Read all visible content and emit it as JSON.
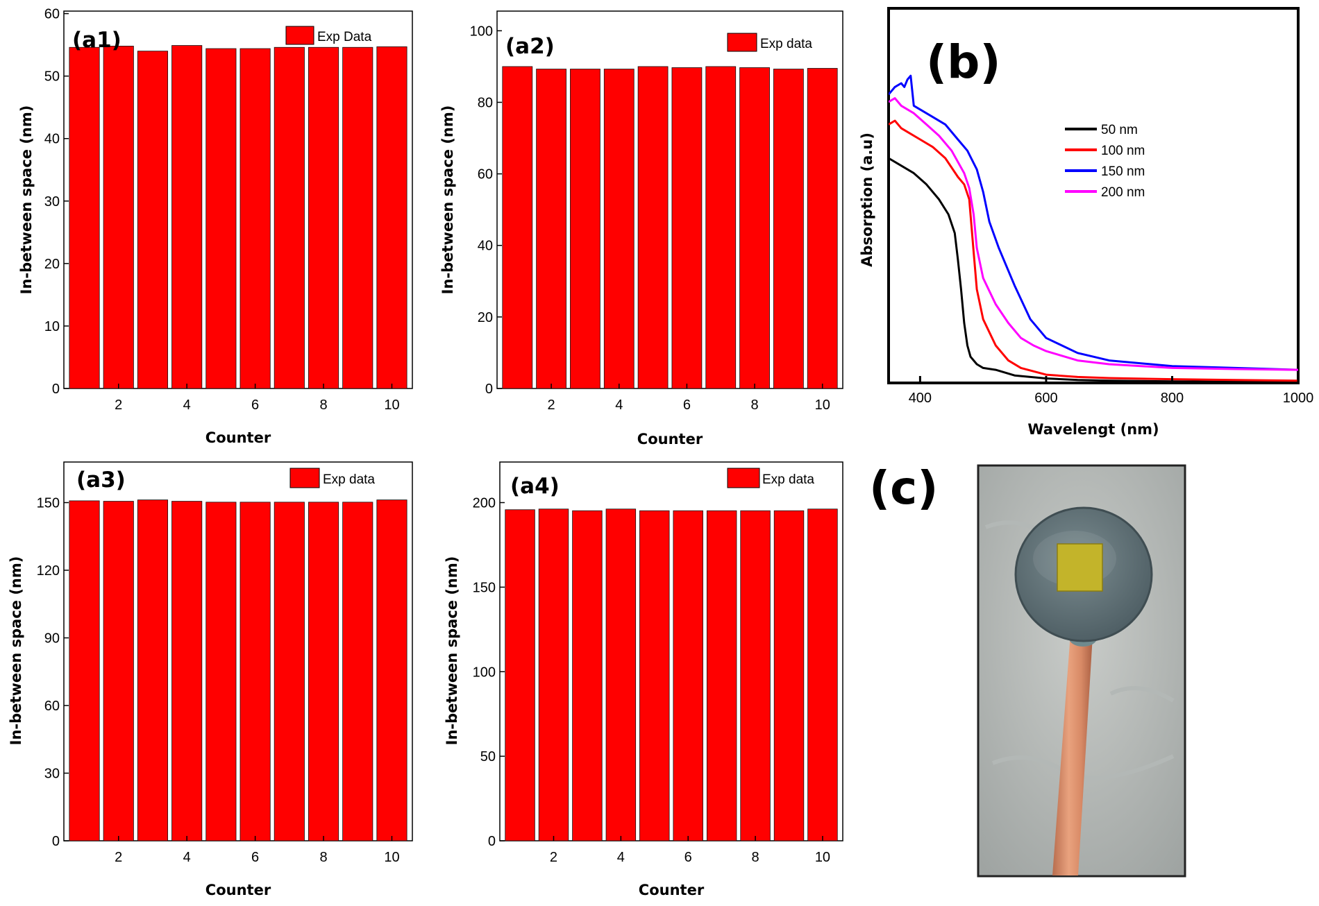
{
  "chart_data": [
    {
      "id": "a1",
      "type": "bar",
      "panel_label": "(a1)",
      "legend": "Exp Data",
      "xlabel": "Counter",
      "ylabel": "In-between space (nm)",
      "categories": [
        1,
        2,
        3,
        4,
        5,
        6,
        7,
        8,
        9,
        10
      ],
      "values": [
        54.6,
        54.8,
        54.0,
        54.9,
        54.4,
        54.4,
        54.6,
        54.6,
        54.6,
        54.7
      ],
      "xticks": [
        2,
        4,
        6,
        8,
        10
      ],
      "yticks": [
        0,
        10,
        20,
        30,
        40,
        50,
        60
      ],
      "xlim": [
        0.4,
        10.6
      ],
      "ylim": [
        0,
        60.4
      ],
      "color": "#ff0000"
    },
    {
      "id": "a2",
      "type": "bar",
      "panel_label": "(a2)",
      "legend": "Exp data",
      "xlabel": "Counter",
      "ylabel": "In-between space (nm)",
      "categories": [
        1,
        2,
        3,
        4,
        5,
        6,
        7,
        8,
        9,
        10
      ],
      "values": [
        90.0,
        89.3,
        89.3,
        89.3,
        90.0,
        89.7,
        90.0,
        89.7,
        89.3,
        89.5
      ],
      "xticks": [
        2,
        4,
        6,
        8,
        10
      ],
      "yticks": [
        0,
        20,
        40,
        60,
        80,
        100
      ],
      "xlim": [
        0.4,
        10.6
      ],
      "ylim": [
        0,
        105.5
      ],
      "color": "#ff0000"
    },
    {
      "id": "a3",
      "type": "bar",
      "panel_label": "(a3)",
      "legend": "Exp data",
      "xlabel": "Counter",
      "ylabel": "In-between space (nm)",
      "categories": [
        1,
        2,
        3,
        4,
        5,
        6,
        7,
        8,
        9,
        10
      ],
      "values": [
        150.8,
        150.6,
        151.2,
        150.6,
        150.2,
        150.2,
        150.2,
        150.2,
        150.2,
        151.2
      ],
      "xticks": [
        2,
        4,
        6,
        8,
        10
      ],
      "yticks": [
        0,
        30,
        60,
        90,
        120,
        150
      ],
      "xlim": [
        0.4,
        10.6
      ],
      "ylim": [
        0,
        168
      ],
      "color": "#ff0000"
    },
    {
      "id": "a4",
      "type": "bar",
      "panel_label": "(a4)",
      "legend": "Exp data",
      "xlabel": "Counter",
      "ylabel": "In-between space (nm)",
      "categories": [
        1,
        2,
        3,
        4,
        5,
        6,
        7,
        8,
        9,
        10
      ],
      "values": [
        195.8,
        196.2,
        195.2,
        196.2,
        195.2,
        195.2,
        195.2,
        195.2,
        195.2,
        196.2
      ],
      "xticks": [
        2,
        4,
        6,
        8,
        10
      ],
      "yticks": [
        0,
        50,
        100,
        150,
        200
      ],
      "xlim": [
        0.4,
        10.6
      ],
      "ylim": [
        0,
        224
      ],
      "color": "#ff0000"
    },
    {
      "id": "b",
      "type": "line",
      "panel_label": "(b)",
      "xlabel": "Wavelengt (nm)",
      "ylabel": "Absorption (a.u)",
      "xticks": [
        400,
        600,
        800,
        1000
      ],
      "xlim": [
        350,
        1000
      ],
      "ylim": [
        0,
        1.0
      ],
      "series": [
        {
          "name": "50 nm",
          "color": "#000000",
          "x": [
            350,
            370,
            390,
            410,
            430,
            445,
            455,
            460,
            465,
            470,
            475,
            480,
            490,
            500,
            520,
            550,
            600,
            650,
            700,
            800,
            900,
            1000
          ],
          "y": [
            0.6,
            0.58,
            0.56,
            0.53,
            0.49,
            0.45,
            0.4,
            0.33,
            0.25,
            0.16,
            0.1,
            0.07,
            0.05,
            0.04,
            0.035,
            0.02,
            0.012,
            0.008,
            0.006,
            0.004,
            0.003,
            0.002
          ]
        },
        {
          "name": "100 nm",
          "color": "#ff0000",
          "x": [
            350,
            360,
            370,
            380,
            400,
            420,
            440,
            460,
            470,
            478,
            485,
            490,
            500,
            520,
            540,
            560,
            600,
            650,
            700,
            800,
            900,
            1000
          ],
          "y": [
            0.69,
            0.7,
            0.68,
            0.67,
            0.65,
            0.63,
            0.6,
            0.55,
            0.53,
            0.49,
            0.35,
            0.25,
            0.17,
            0.1,
            0.06,
            0.04,
            0.022,
            0.016,
            0.013,
            0.01,
            0.008,
            0.006
          ]
        },
        {
          "name": "150 nm",
          "color": "#0000ff",
          "x": [
            350,
            360,
            370,
            375,
            380,
            385,
            390,
            400,
            420,
            440,
            460,
            475,
            490,
            500,
            510,
            525,
            550,
            575,
            600,
            650,
            700,
            800,
            900,
            1000
          ],
          "y": [
            0.77,
            0.79,
            0.8,
            0.79,
            0.81,
            0.82,
            0.74,
            0.73,
            0.71,
            0.69,
            0.65,
            0.62,
            0.57,
            0.51,
            0.43,
            0.36,
            0.26,
            0.17,
            0.12,
            0.08,
            0.06,
            0.045,
            0.04,
            0.035
          ]
        },
        {
          "name": "200 nm",
          "color": "#ff00ff",
          "x": [
            350,
            360,
            370,
            390,
            410,
            430,
            450,
            470,
            478,
            485,
            490,
            500,
            520,
            540,
            560,
            580,
            600,
            650,
            700,
            800,
            900,
            1000
          ],
          "y": [
            0.75,
            0.76,
            0.74,
            0.72,
            0.69,
            0.66,
            0.62,
            0.56,
            0.52,
            0.45,
            0.36,
            0.28,
            0.21,
            0.16,
            0.12,
            0.1,
            0.085,
            0.06,
            0.05,
            0.04,
            0.037,
            0.035
          ]
        }
      ]
    }
  ],
  "photo": {
    "panel_label": "(c)"
  }
}
